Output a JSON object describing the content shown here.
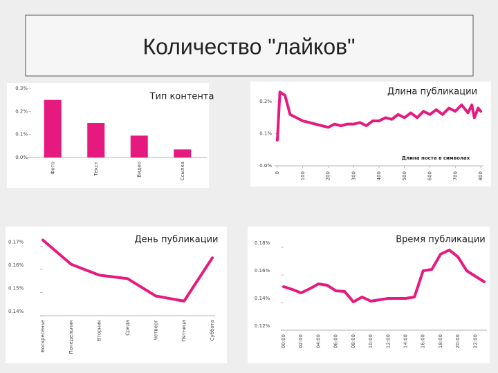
{
  "title": "Количество \"лайков\"",
  "chart_data": [
    {
      "type": "bar",
      "title": "Тип контента",
      "categories": [
        "Фото",
        "Текст",
        "Видео",
        "Ссылка"
      ],
      "values": [
        0.25,
        0.15,
        0.095,
        0.035
      ],
      "color": "#e6197f",
      "ylim": [
        0,
        0.3
      ],
      "yticks": [
        {
          "value": 0,
          "label": "0.0%"
        },
        {
          "value": 0.1,
          "label": "0.1%"
        },
        {
          "value": 0.2,
          "label": "0.2%"
        },
        {
          "value": 0.3,
          "label": "0.3%"
        }
      ]
    },
    {
      "type": "line",
      "title": "Длина публикации",
      "xlabel": "Длина поста в символах",
      "color": "#e6197f",
      "x": [
        0,
        10,
        30,
        50,
        75,
        100,
        125,
        150,
        175,
        200,
        225,
        250,
        275,
        300,
        325,
        350,
        375,
        400,
        425,
        450,
        475,
        500,
        525,
        550,
        575,
        600,
        625,
        650,
        675,
        700,
        725,
        750,
        765,
        775,
        790,
        800
      ],
      "values": [
        0.08,
        0.23,
        0.22,
        0.16,
        0.15,
        0.14,
        0.135,
        0.13,
        0.125,
        0.12,
        0.13,
        0.125,
        0.13,
        0.13,
        0.135,
        0.125,
        0.14,
        0.14,
        0.15,
        0.145,
        0.16,
        0.15,
        0.165,
        0.15,
        0.17,
        0.16,
        0.175,
        0.16,
        0.18,
        0.17,
        0.19,
        0.165,
        0.19,
        0.15,
        0.18,
        0.17
      ],
      "xlim": [
        0,
        800
      ],
      "xticks": [
        0,
        100,
        200,
        300,
        400,
        500,
        600,
        700,
        800
      ],
      "ylim": [
        0,
        0.25
      ],
      "yticks": [
        {
          "value": 0,
          "label": "0.0%"
        },
        {
          "value": 0.1,
          "label": "0.1%"
        },
        {
          "value": 0.2,
          "label": "0.2%"
        }
      ]
    },
    {
      "type": "line",
      "title": "День публикации",
      "color": "#e6197f",
      "categories": [
        "Воскресенье",
        "Понедельник",
        "Вторник",
        "Среда",
        "Четверг",
        "Пятница",
        "Суббота"
      ],
      "values": [
        0.1727,
        0.1622,
        0.1575,
        0.156,
        0.1485,
        0.1463,
        0.165
      ],
      "ylim": [
        0.14,
        0.175
      ],
      "yticks": [
        {
          "value": 0.14,
          "label": "0.14%"
        },
        {
          "value": 0.15,
          "label": "0.15%"
        },
        {
          "value": 0.16,
          "label": "0.16%"
        },
        {
          "value": 0.17,
          "label": "0.17%"
        }
      ]
    },
    {
      "type": "line",
      "title": "Время публикации",
      "color": "#e6197f",
      "categories": [
        "00:00",
        null,
        "02:00",
        null,
        "04:00",
        null,
        "06:00",
        null,
        "08:00",
        null,
        "10:00",
        null,
        "12:00",
        null,
        "14:00",
        null,
        "16:00",
        null,
        "18:00",
        null,
        "20:00",
        null,
        "22:00",
        null
      ],
      "values": [
        0.1515,
        0.1495,
        0.147,
        0.15,
        0.1535,
        0.1525,
        0.1485,
        0.148,
        0.1405,
        0.144,
        0.141,
        0.142,
        0.143,
        0.143,
        0.143,
        0.144,
        0.163,
        0.164,
        0.175,
        0.178,
        0.173,
        0.163,
        0.159,
        0.155
      ],
      "ylim": [
        0.12,
        0.185
      ],
      "yticks": [
        {
          "value": 0.12,
          "label": "0.12%"
        },
        {
          "value": 0.14,
          "label": "0.14%"
        },
        {
          "value": 0.16,
          "label": "0.16%"
        },
        {
          "value": 0.18,
          "label": "0.18%"
        }
      ]
    }
  ]
}
